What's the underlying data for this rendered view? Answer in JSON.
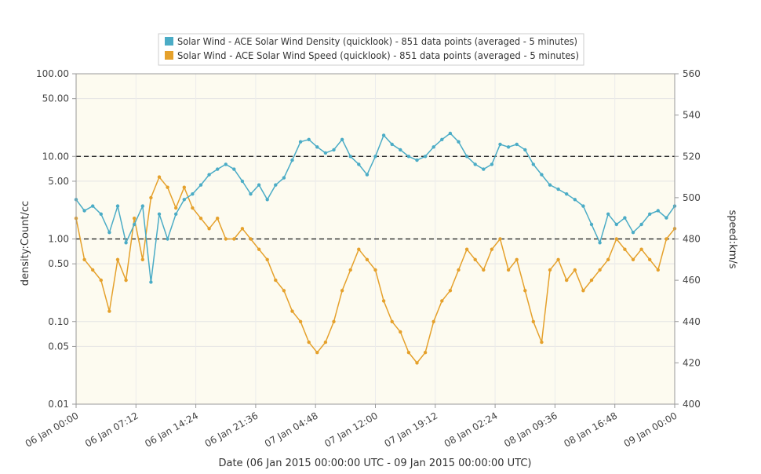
{
  "chart_data": {
    "type": "line",
    "title": "",
    "xlabel": "Date (06 Jan 2015 00:00:00 UTC - 09 Jan 2015 00:00:00 UTC)",
    "ylabel_left": "density:Count/cc",
    "ylabel_right": "speed:km/s",
    "y_left_scale": "log",
    "y_left_range": [
      0.01,
      100
    ],
    "y_left_ticks": [
      {
        "value": 100,
        "label": "100.00"
      },
      {
        "value": 50,
        "label": "50.00"
      },
      {
        "value": 10,
        "label": "10.00"
      },
      {
        "value": 5,
        "label": "5.00"
      },
      {
        "value": 1,
        "label": "1.00"
      },
      {
        "value": 0.5,
        "label": "0.50"
      },
      {
        "value": 0.1,
        "label": "0.10"
      },
      {
        "value": 0.05,
        "label": "0.05"
      },
      {
        "value": 0.01,
        "label": "0.01"
      }
    ],
    "y_right_range": [
      400,
      560
    ],
    "y_right_ticks": [
      560,
      540,
      520,
      500,
      480,
      460,
      440,
      420,
      400
    ],
    "x_range_hours": [
      0,
      72
    ],
    "x_ticks": [
      {
        "hour": 0,
        "label": "06 Jan 00:00"
      },
      {
        "hour": 7.2,
        "label": "06 Jan 07:12"
      },
      {
        "hour": 14.4,
        "label": "06 Jan 14:24"
      },
      {
        "hour": 21.6,
        "label": "06 Jan 21:36"
      },
      {
        "hour": 28.8,
        "label": "07 Jan 04:48"
      },
      {
        "hour": 36,
        "label": "07 Jan 12:00"
      },
      {
        "hour": 43.2,
        "label": "07 Jan 19:12"
      },
      {
        "hour": 50.4,
        "label": "08 Jan 02:24"
      },
      {
        "hour": 57.6,
        "label": "08 Jan 09:36"
      },
      {
        "hour": 64.8,
        "label": "08 Jan 16:48"
      },
      {
        "hour": 72,
        "label": "09 Jan 00:00"
      }
    ],
    "reference_lines_left": [
      10,
      1
    ],
    "legend_position": "top",
    "series": [
      {
        "name": "Solar Wind - ACE Solar Wind Density (quicklook) - 851 data points (averaged - 5 minutes)",
        "axis": "left",
        "color": "#4bacc6",
        "points": [
          [
            0.0,
            3.0
          ],
          [
            1.0,
            2.2
          ],
          [
            2.0,
            2.5
          ],
          [
            3.0,
            2.0
          ],
          [
            4.0,
            1.2
          ],
          [
            5.0,
            2.5
          ],
          [
            6.0,
            0.9
          ],
          [
            7.0,
            1.5
          ],
          [
            8.0,
            2.5
          ],
          [
            9.0,
            0.3
          ],
          [
            10.0,
            2.0
          ],
          [
            11.0,
            1.0
          ],
          [
            12.0,
            2.0
          ],
          [
            13.0,
            3.0
          ],
          [
            14.0,
            3.5
          ],
          [
            15.0,
            4.5
          ],
          [
            16.0,
            6.0
          ],
          [
            17.0,
            7.0
          ],
          [
            18.0,
            8.0
          ],
          [
            19.0,
            7.0
          ],
          [
            20.0,
            5.0
          ],
          [
            21.0,
            3.5
          ],
          [
            22.0,
            4.5
          ],
          [
            23.0,
            3.0
          ],
          [
            24.0,
            4.5
          ],
          [
            25.0,
            5.5
          ],
          [
            26.0,
            9.0
          ],
          [
            27.0,
            15.0
          ],
          [
            28.0,
            16.0
          ],
          [
            29.0,
            13.0
          ],
          [
            30.0,
            11.0
          ],
          [
            31.0,
            12.0
          ],
          [
            32.0,
            16.0
          ],
          [
            33.0,
            10.0
          ],
          [
            34.0,
            8.0
          ],
          [
            35.0,
            6.0
          ],
          [
            36.0,
            10.0
          ],
          [
            37.0,
            18.0
          ],
          [
            38.0,
            14.0
          ],
          [
            39.0,
            12.0
          ],
          [
            40.0,
            10.0
          ],
          [
            41.0,
            9.0
          ],
          [
            42.0,
            10.0
          ],
          [
            43.0,
            13.0
          ],
          [
            44.0,
            16.0
          ],
          [
            45.0,
            19.0
          ],
          [
            46.0,
            15.0
          ],
          [
            47.0,
            10.0
          ],
          [
            48.0,
            8.0
          ],
          [
            49.0,
            7.0
          ],
          [
            50.0,
            8.0
          ],
          [
            51.0,
            14.0
          ],
          [
            52.0,
            13.0
          ],
          [
            53.0,
            14.0
          ],
          [
            54.0,
            12.0
          ],
          [
            55.0,
            8.0
          ],
          [
            56.0,
            6.0
          ],
          [
            57.0,
            4.5
          ],
          [
            58.0,
            4.0
          ],
          [
            59.0,
            3.5
          ],
          [
            60.0,
            3.0
          ],
          [
            61.0,
            2.5
          ],
          [
            62.0,
            1.5
          ],
          [
            63.0,
            0.9
          ],
          [
            64.0,
            2.0
          ],
          [
            65.0,
            1.5
          ],
          [
            66.0,
            1.8
          ],
          [
            67.0,
            1.2
          ],
          [
            68.0,
            1.5
          ],
          [
            69.0,
            2.0
          ],
          [
            70.0,
            2.2
          ],
          [
            71.0,
            1.8
          ],
          [
            72.0,
            2.5
          ]
        ]
      },
      {
        "name": "Solar Wind - ACE Solar Wind Speed (quicklook) - 851 data points (averaged - 5 minutes)",
        "axis": "right",
        "color": "#e5a12c",
        "points": [
          [
            0.0,
            490
          ],
          [
            1.0,
            470
          ],
          [
            2.0,
            465
          ],
          [
            3.0,
            460
          ],
          [
            4.0,
            445
          ],
          [
            5.0,
            470
          ],
          [
            6.0,
            460
          ],
          [
            7.0,
            490
          ],
          [
            8.0,
            470
          ],
          [
            9.0,
            500
          ],
          [
            10.0,
            510
          ],
          [
            11.0,
            505
          ],
          [
            12.0,
            495
          ],
          [
            13.0,
            505
          ],
          [
            14.0,
            495
          ],
          [
            15.0,
            490
          ],
          [
            16.0,
            485
          ],
          [
            17.0,
            490
          ],
          [
            18.0,
            480
          ],
          [
            19.0,
            480
          ],
          [
            20.0,
            485
          ],
          [
            21.0,
            480
          ],
          [
            22.0,
            475
          ],
          [
            23.0,
            470
          ],
          [
            24.0,
            460
          ],
          [
            25.0,
            455
          ],
          [
            26.0,
            445
          ],
          [
            27.0,
            440
          ],
          [
            28.0,
            430
          ],
          [
            29.0,
            425
          ],
          [
            30.0,
            430
          ],
          [
            31.0,
            440
          ],
          [
            32.0,
            455
          ],
          [
            33.0,
            465
          ],
          [
            34.0,
            475
          ],
          [
            35.0,
            470
          ],
          [
            36.0,
            465
          ],
          [
            37.0,
            450
          ],
          [
            38.0,
            440
          ],
          [
            39.0,
            435
          ],
          [
            40.0,
            425
          ],
          [
            41.0,
            420
          ],
          [
            42.0,
            425
          ],
          [
            43.0,
            440
          ],
          [
            44.0,
            450
          ],
          [
            45.0,
            455
          ],
          [
            46.0,
            465
          ],
          [
            47.0,
            475
          ],
          [
            48.0,
            470
          ],
          [
            49.0,
            465
          ],
          [
            50.0,
            475
          ],
          [
            51.0,
            480
          ],
          [
            52.0,
            465
          ],
          [
            53.0,
            470
          ],
          [
            54.0,
            455
          ],
          [
            55.0,
            440
          ],
          [
            56.0,
            430
          ],
          [
            57.0,
            465
          ],
          [
            58.0,
            470
          ],
          [
            59.0,
            460
          ],
          [
            60.0,
            465
          ],
          [
            61.0,
            455
          ],
          [
            62.0,
            460
          ],
          [
            63.0,
            465
          ],
          [
            64.0,
            470
          ],
          [
            65.0,
            480
          ],
          [
            66.0,
            475
          ],
          [
            67.0,
            470
          ],
          [
            68.0,
            475
          ],
          [
            69.0,
            470
          ],
          [
            70.0,
            465
          ],
          [
            71.0,
            480
          ],
          [
            72.0,
            485
          ]
        ]
      }
    ]
  }
}
